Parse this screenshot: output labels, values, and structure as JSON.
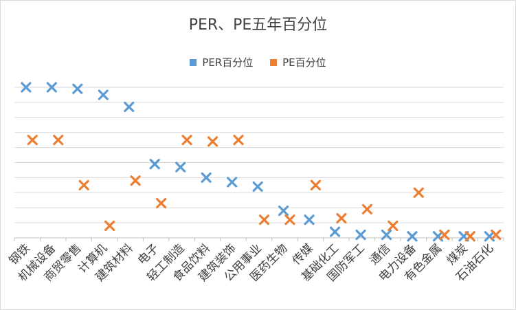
{
  "chart_data": {
    "type": "scatter",
    "title": "PER、PE五年百分位",
    "categories": [
      "钢铁",
      "机械设备",
      "商贸零售",
      "计算机",
      "建筑材料",
      "电子",
      "轻工制造",
      "食品饮料",
      "建筑装饰",
      "公用事业",
      "医药生物",
      "传媒",
      "基础化工",
      "国防军工",
      "通信",
      "电力设备",
      "有色金属",
      "煤炭",
      "石油石化"
    ],
    "series": [
      {
        "name": "PER百分位",
        "color": "#5B9BD5",
        "values": [
          100,
          100,
          99,
          95,
          87,
          49,
          47,
          40,
          37,
          34,
          18,
          12,
          4,
          2,
          2,
          1,
          1,
          1,
          1
        ]
      },
      {
        "name": "PE百分位",
        "color": "#ED7D31",
        "values": [
          65,
          65,
          35,
          8,
          38,
          23,
          65,
          64,
          65,
          12,
          12,
          35,
          13,
          19,
          8,
          30,
          2,
          1,
          2
        ]
      }
    ],
    "ylim": [
      0,
      100
    ],
    "grid": true,
    "legend_position": "top",
    "marker": "x"
  }
}
